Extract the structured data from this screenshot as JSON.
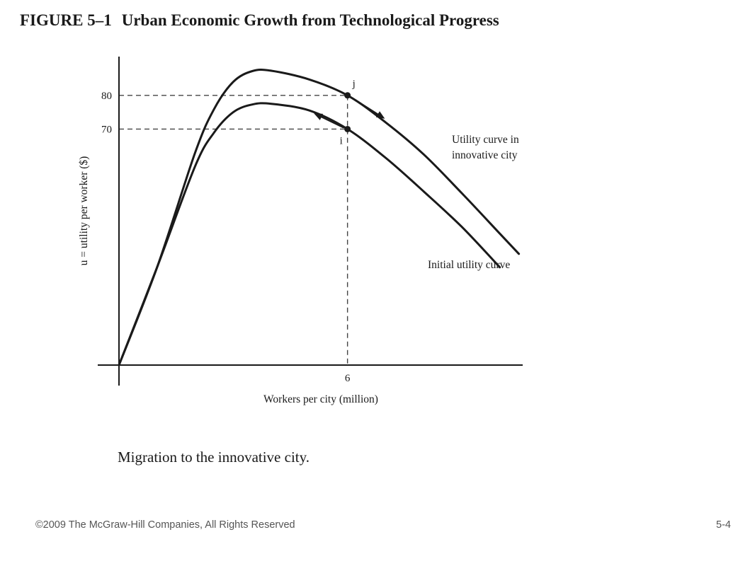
{
  "figure": {
    "number": "FIGURE 5–1",
    "title": "Urban Economic Growth from Technological Progress",
    "caption": "Migration to the innovative city."
  },
  "footer": {
    "copyright": "©2009 The McGraw-Hill Companies, All Rights Reserved",
    "slide_number": "5-4"
  },
  "chart_data": {
    "type": "line",
    "xlabel": "Workers per city (million)",
    "ylabel": "u = utility per worker ($)",
    "xlim": [
      0,
      10.6
    ],
    "ylim": [
      0,
      91.5
    ],
    "x_ticks": [
      {
        "value": 6,
        "label": "6"
      }
    ],
    "y_ticks": [
      {
        "value": 70,
        "label": "70"
      },
      {
        "value": 80,
        "label": "80"
      }
    ],
    "grid": false,
    "series": [
      {
        "name": "Utility curve in innovative city",
        "color": "#1a1a1a",
        "x": [
          0,
          1,
          2,
          2.5,
          3,
          3.5,
          4,
          5,
          6,
          7,
          8,
          9,
          10,
          10.5
        ],
        "y": [
          0,
          29,
          63,
          76,
          84,
          87.2,
          87.3,
          84.7,
          80,
          72,
          62.5,
          51,
          39,
          33
        ]
      },
      {
        "name": "Initial utility curve",
        "color": "#1a1a1a",
        "x": [
          0,
          1,
          2,
          2.5,
          3,
          3.5,
          4,
          5,
          6,
          7,
          8,
          9,
          10
        ],
        "y": [
          0,
          29,
          59,
          69,
          75,
          77.3,
          77.5,
          75.5,
          70,
          61.5,
          51.5,
          41,
          29
        ]
      }
    ],
    "points": [
      {
        "label": "j",
        "x": 6,
        "y": 80
      },
      {
        "label": "i",
        "x": 6,
        "y": 70
      }
    ],
    "annotations": [
      {
        "kind": "arrow",
        "from": [
          6.2,
          78.7
        ],
        "to": [
          6.95,
          73.3
        ]
      },
      {
        "kind": "arrow",
        "from": [
          5.9,
          70.4
        ],
        "to": [
          5.15,
          74.5
        ]
      }
    ]
  }
}
